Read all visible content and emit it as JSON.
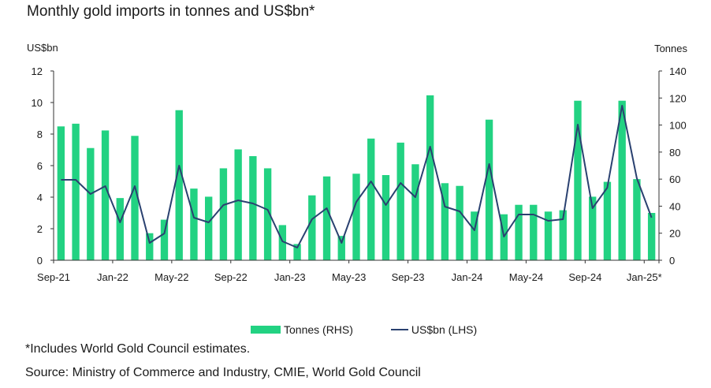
{
  "title": "Monthly gold imports in tonnes and US$bn*",
  "footnote": "*Includes World Gold Council estimates.",
  "source": "Source: Ministry of Commerce and Industry, CMIE, World Gold Council",
  "colors": {
    "bar": "#22d282",
    "line": "#2a4170",
    "axis": "#333333",
    "text": "#1a1a1a"
  },
  "chart_data": {
    "type": "bar+line",
    "title": "Monthly gold imports in tonnes and US$bn*",
    "months": [
      "Sep-21",
      "Oct-21",
      "Nov-21",
      "Dec-21",
      "Jan-22",
      "Feb-22",
      "Mar-22",
      "Apr-22",
      "May-22",
      "Jun-22",
      "Jul-22",
      "Aug-22",
      "Sep-22",
      "Oct-22",
      "Nov-22",
      "Dec-22",
      "Jan-23",
      "Feb-23",
      "Mar-23",
      "Apr-23",
      "May-23",
      "Jun-23",
      "Jul-23",
      "Aug-23",
      "Sep-23",
      "Oct-23",
      "Nov-23",
      "Dec-23",
      "Jan-24",
      "Feb-24",
      "Mar-24",
      "Apr-24",
      "May-24",
      "Jun-24",
      "Jul-24",
      "Aug-24",
      "Sep-24",
      "Oct-24",
      "Nov-24",
      "Dec-24",
      "Jan-25*"
    ],
    "x_tick_labels": [
      "Sep-21",
      "Jan-22",
      "May-22",
      "Sep-22",
      "Jan-23",
      "May-23",
      "Sep-23",
      "Jan-24",
      "May-24",
      "Sep-24",
      "Jan-25*"
    ],
    "left_axis": {
      "label": "US$bn",
      "min": 0,
      "max": 12,
      "ticks": [
        "0",
        "2",
        "4",
        "6",
        "8",
        "10",
        "12"
      ]
    },
    "right_axis": {
      "label": "Tonnes",
      "min": 0,
      "max": 140,
      "ticks": [
        "0",
        "20",
        "40",
        "60",
        "80",
        "100",
        "120",
        "140"
      ]
    },
    "legend_position": "bottom",
    "grid": false,
    "series": [
      {
        "name": "Tonnes (RHS)",
        "type": "bar",
        "axis": "right",
        "values": [
          99,
          101,
          83,
          96,
          46,
          92,
          20,
          30,
          111,
          53,
          47,
          68,
          82,
          77,
          68,
          26,
          12,
          48,
          62,
          18,
          64,
          90,
          63,
          87,
          71,
          122,
          57,
          55,
          36,
          104,
          34,
          41,
          41,
          36,
          37,
          118,
          47,
          58,
          118,
          60,
          35
        ]
      },
      {
        "name": "US$bn (LHS)",
        "type": "line",
        "axis": "left",
        "values": [
          5.1,
          5.1,
          4.2,
          4.7,
          2.4,
          4.7,
          1.1,
          1.7,
          6.0,
          2.7,
          2.4,
          3.5,
          3.8,
          3.6,
          3.2,
          1.2,
          0.8,
          2.6,
          3.3,
          1.1,
          3.7,
          5.0,
          3.5,
          4.9,
          4.0,
          7.2,
          3.4,
          3.1,
          1.9,
          6.1,
          1.5,
          2.9,
          2.9,
          2.5,
          2.6,
          8.6,
          3.3,
          4.6,
          9.8,
          5.2,
          2.7
        ]
      }
    ]
  }
}
